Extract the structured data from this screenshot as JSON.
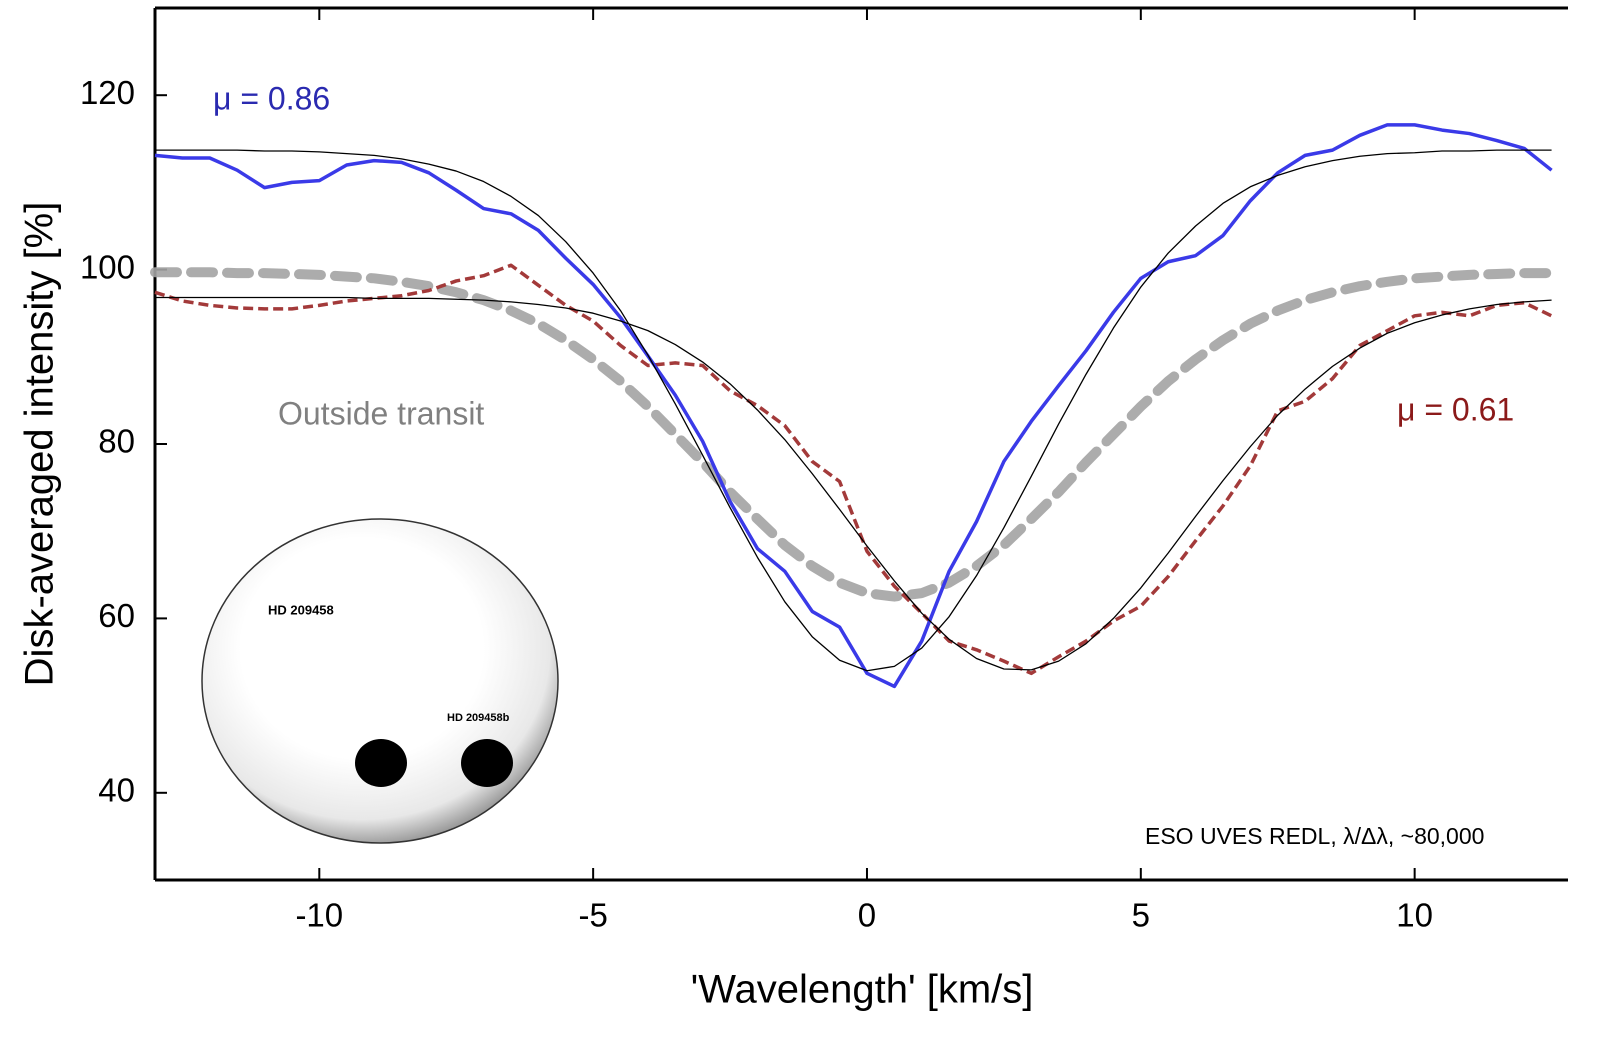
{
  "chart_data": {
    "type": "line",
    "x_label": "'Wavelength' [km/s]",
    "y_label": "Disk-averaged intensity [%]",
    "note": "ESO UVES REDL, λ/Δλ, ~80,000",
    "inset_labels": [
      "HD 209458",
      "HD 209458b"
    ],
    "xlim": [
      -13,
      12.8
    ],
    "ylim": [
      30,
      130
    ],
    "xticks": [
      -10,
      -5,
      0,
      5,
      10
    ],
    "yticks": [
      40,
      60,
      80,
      100,
      120
    ],
    "x": [
      -13,
      -12.5,
      -12,
      -11.5,
      -11,
      -10.5,
      -10,
      -9.5,
      -9,
      -8.5,
      -8,
      -7.5,
      -7,
      -6.5,
      -6,
      -5.5,
      -5,
      -4.5,
      -4,
      -3.5,
      -3,
      -2.5,
      -2,
      -1.5,
      -1,
      -0.5,
      0,
      0.5,
      1,
      1.5,
      2,
      2.5,
      3,
      3.5,
      4,
      4.5,
      5,
      5.5,
      6,
      6.5,
      7,
      7.5,
      8,
      8.5,
      9,
      9.5,
      10,
      10.5,
      11,
      11.5,
      12,
      12.5
    ],
    "series": [
      {
        "name": "Outside transit",
        "color": "#a3a3a3",
        "style": "bold-dashed",
        "values": [
          99.7,
          99.7,
          99.7,
          99.6,
          99.6,
          99.5,
          99.4,
          99.2,
          99.0,
          98.6,
          98.1,
          97.4,
          96.5,
          95.3,
          93.8,
          91.9,
          89.7,
          87.2,
          84.3,
          81.1,
          77.9,
          74.5,
          71.4,
          68.4,
          66.0,
          64.1,
          62.9,
          62.5,
          62.9,
          64.1,
          66.0,
          68.4,
          71.4,
          74.5,
          77.9,
          81.1,
          84.3,
          87.2,
          89.7,
          91.9,
          93.8,
          95.3,
          96.5,
          97.4,
          98.1,
          98.6,
          99.0,
          99.2,
          99.4,
          99.5,
          99.6,
          99.6
        ]
      },
      {
        "name": "μ = 0.61",
        "color": "#a33a3a",
        "style": "dashed",
        "values": [
          97.4,
          96.4,
          95.9,
          95.6,
          95.5,
          95.5,
          95.9,
          96.4,
          96.7,
          97.0,
          97.6,
          98.7,
          99.3,
          100.5,
          98.2,
          95.9,
          94.1,
          91.3,
          89.0,
          89.3,
          89.0,
          86.1,
          84.4,
          82.1,
          78.0,
          75.7,
          67.7,
          63.7,
          60.6,
          57.4,
          56.4,
          55.1,
          53.7,
          55.6,
          57.4,
          59.7,
          61.4,
          64.8,
          68.9,
          72.9,
          77.5,
          83.8,
          84.9,
          87.5,
          91.3,
          93.0,
          94.7,
          95.1,
          94.7,
          95.9,
          96.2,
          94.7
        ]
      },
      {
        "name": "μ = 0.86",
        "color": "#3a3ae8",
        "style": "solid",
        "values": [
          113.1,
          112.8,
          112.8,
          111.4,
          109.4,
          110.0,
          110.2,
          112.0,
          112.5,
          112.3,
          111.1,
          109.1,
          107.0,
          106.4,
          104.5,
          101.3,
          98.3,
          94.5,
          90.1,
          85.6,
          80.3,
          73.4,
          68.0,
          65.4,
          60.8,
          59.0,
          53.7,
          52.2,
          57.4,
          65.4,
          71.1,
          78.0,
          82.6,
          86.7,
          90.7,
          95.1,
          99.0,
          100.9,
          101.6,
          103.9,
          107.9,
          111.1,
          113.1,
          113.7,
          115.4,
          116.6,
          116.6,
          116.0,
          115.6,
          114.8,
          113.9,
          111.4
        ]
      },
      {
        "color": "#000000",
        "style": "thin",
        "values": [
          96.8,
          96.8,
          96.8,
          96.8,
          96.8,
          96.8,
          96.8,
          96.8,
          96.7,
          96.7,
          96.7,
          96.6,
          96.5,
          96.3,
          96.0,
          95.6,
          95.0,
          94.1,
          93.0,
          91.4,
          89.4,
          86.9,
          83.9,
          80.5,
          76.6,
          72.5,
          68.3,
          64.3,
          60.6,
          57.6,
          55.4,
          54.2,
          54.1,
          55.1,
          57.1,
          60.0,
          63.5,
          67.5,
          71.7,
          75.8,
          79.7,
          83.3,
          86.3,
          88.9,
          91.0,
          92.7,
          93.9,
          94.8,
          95.5,
          96.0,
          96.3,
          96.5
        ]
      },
      {
        "color": "#000000",
        "style": "thin",
        "values": [
          113.7,
          113.7,
          113.7,
          113.7,
          113.6,
          113.6,
          113.5,
          113.3,
          113.1,
          112.7,
          112.1,
          111.3,
          110.1,
          108.4,
          106.2,
          103.2,
          99.6,
          95.3,
          90.2,
          84.6,
          78.7,
          72.7,
          67.0,
          61.9,
          57.9,
          55.2,
          54.0,
          54.5,
          56.6,
          60.2,
          64.9,
          70.4,
          76.3,
          82.3,
          88.0,
          93.3,
          98.0,
          101.9,
          105.0,
          107.6,
          109.5,
          110.8,
          111.8,
          112.5,
          113.0,
          113.3,
          113.4,
          113.6,
          113.6,
          113.7,
          113.7,
          113.7
        ]
      }
    ]
  }
}
